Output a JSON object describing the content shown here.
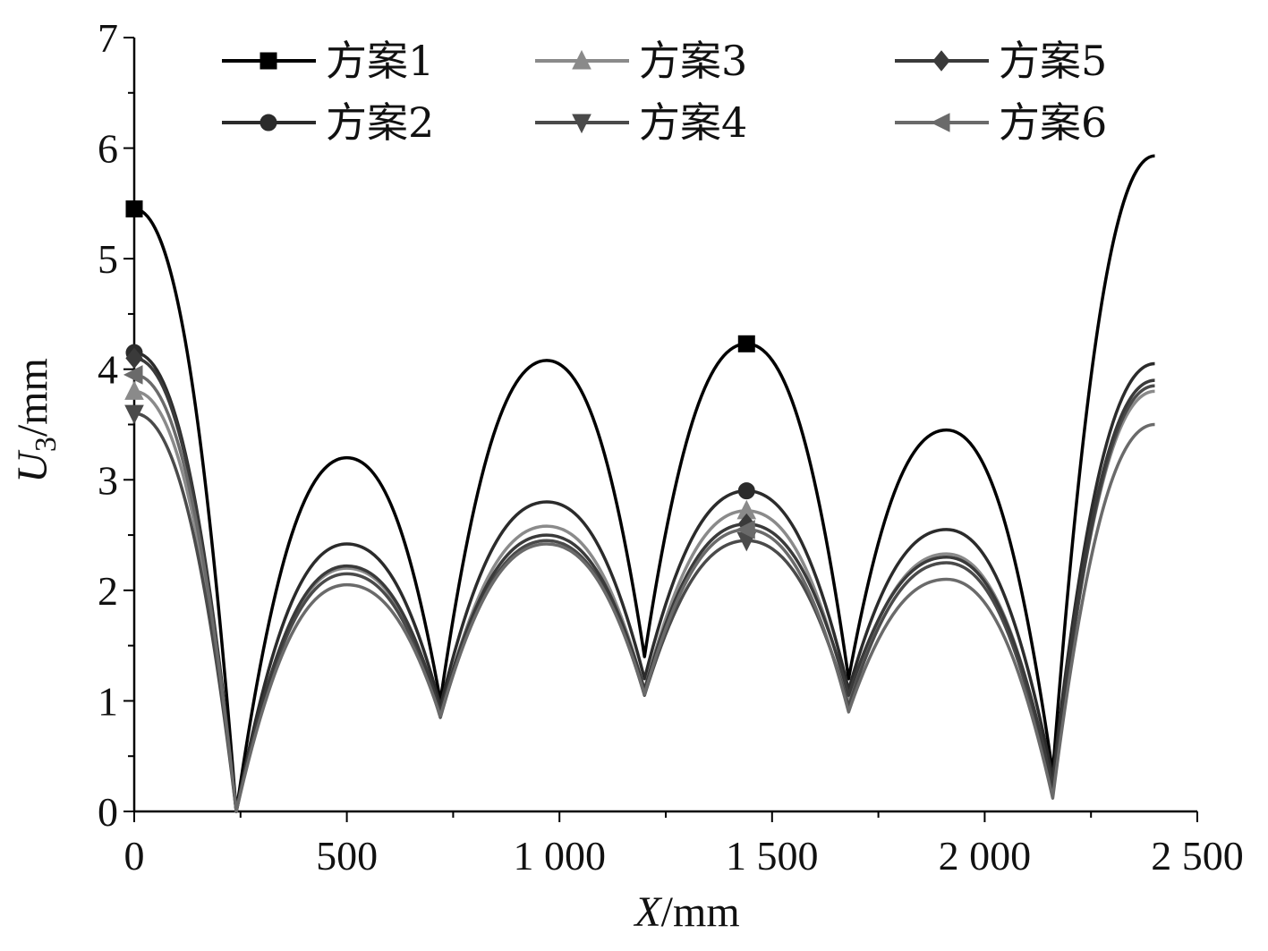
{
  "chart_data": {
    "type": "line",
    "title": "",
    "xlabel_var": "X",
    "xlabel_unit": "/mm",
    "ylabel_var": "U",
    "ylabel_sub": "3",
    "ylabel_unit": "/mm",
    "xlim": [
      0,
      2500
    ],
    "ylim": [
      0,
      7
    ],
    "xticks": [
      0,
      500,
      1000,
      1500,
      2000,
      2500
    ],
    "xtick_labels": [
      "0",
      "500",
      "1 000",
      "1 500",
      "2 000",
      "2 500"
    ],
    "yticks": [
      0,
      1,
      2,
      3,
      4,
      5,
      6,
      7
    ],
    "ytick_labels": [
      "0",
      "1",
      "2",
      "3",
      "4",
      "5",
      "6",
      "7"
    ],
    "grid": false,
    "legend_position": "top",
    "x": [
      0,
      240,
      500,
      720,
      970,
      1200,
      1440,
      1680,
      1910,
      2160,
      2400
    ],
    "series": [
      {
        "name": "方案1",
        "color": "#000000",
        "marker": "square",
        "values": [
          5.45,
          0.0,
          3.2,
          1.0,
          4.08,
          1.4,
          4.23,
          1.2,
          3.45,
          0.35,
          5.93
        ]
      },
      {
        "name": "方案2",
        "color": "#2b2b2b",
        "marker": "circle",
        "values": [
          4.15,
          0.0,
          2.42,
          0.95,
          2.8,
          1.2,
          2.9,
          1.1,
          2.55,
          0.3,
          4.05
        ]
      },
      {
        "name": "方案3",
        "color": "#8a8a8a",
        "marker": "triangle-up",
        "values": [
          3.8,
          0.0,
          2.2,
          0.88,
          2.58,
          1.1,
          2.72,
          1.0,
          2.33,
          0.2,
          3.8
        ]
      },
      {
        "name": "方案4",
        "color": "#4a4a4a",
        "marker": "triangle-down",
        "values": [
          3.6,
          0.0,
          2.15,
          0.85,
          2.45,
          1.05,
          2.45,
          0.95,
          2.25,
          0.15,
          3.85
        ]
      },
      {
        "name": "方案5",
        "color": "#3a3a3a",
        "marker": "diamond",
        "values": [
          4.1,
          0.0,
          2.22,
          0.9,
          2.5,
          1.1,
          2.6,
          1.05,
          2.3,
          0.22,
          3.9
        ]
      },
      {
        "name": "方案6",
        "color": "#6a6a6a",
        "marker": "triangle-left",
        "values": [
          3.95,
          0.0,
          2.05,
          0.86,
          2.42,
          1.06,
          2.55,
          0.9,
          2.1,
          0.12,
          3.5
        ]
      }
    ]
  }
}
